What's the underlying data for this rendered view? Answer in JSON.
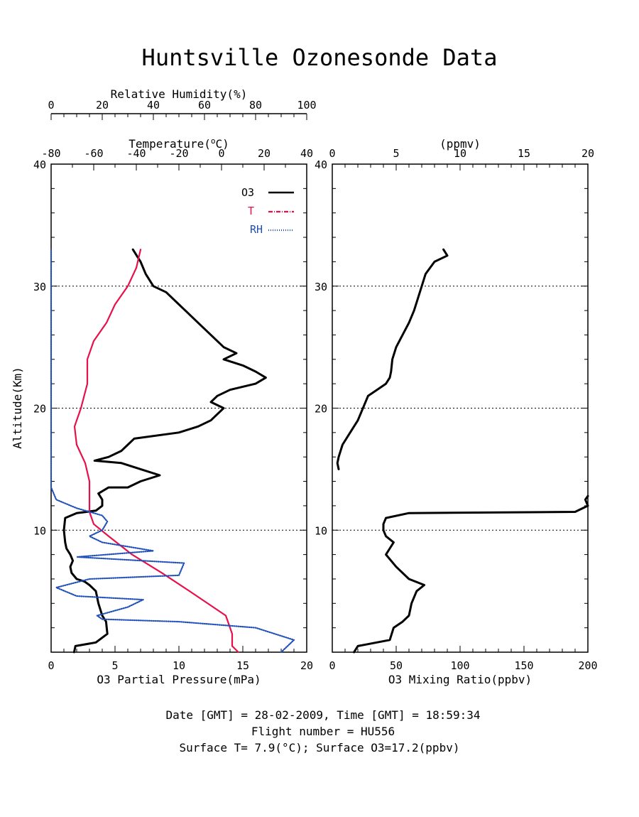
{
  "title": "Huntsville Ozonesonde Data",
  "footer": {
    "line1": "Date [GMT] = 28-02-2009,  Time [GMT] = 18:59:34",
    "line2": "Flight number = HU556",
    "line3": "Surface T= 7.9(°C); Surface O3=17.2(ppbv)"
  },
  "colors": {
    "o3": "#000000",
    "temperature": "#e8104a",
    "rh": "#1f4fb8"
  },
  "chart_data": [
    {
      "type": "line",
      "panel": "left",
      "y_axis": {
        "label": "Altitude(Km)",
        "range": [
          0,
          40
        ],
        "ticks": [
          10,
          20,
          30,
          40
        ],
        "grid_lines": [
          10,
          20,
          30
        ]
      },
      "x_axes": {
        "bottom": {
          "label": "O3 Partial Pressure(mPa)",
          "range": [
            0,
            20
          ],
          "ticks": [
            0,
            5,
            10,
            15,
            20
          ]
        },
        "temperature": {
          "label": "Temperature(°C)",
          "range": [
            -80,
            40
          ],
          "ticks": [
            -80,
            -60,
            -40,
            -20,
            0,
            20,
            40
          ]
        },
        "humidity": {
          "label": "Relative Humidity(%)",
          "range": [
            0,
            100
          ],
          "ticks": [
            0,
            20,
            40,
            60,
            80,
            100
          ]
        }
      },
      "legend": {
        "placement": "top-right",
        "entries": [
          "O3",
          "T",
          "RH"
        ]
      },
      "series": [
        {
          "name": "O3",
          "axis": "bottom",
          "color": "#000000",
          "points": [
            [
              1.8,
              0
            ],
            [
              1.9,
              0.5
            ],
            [
              3.5,
              0.8
            ],
            [
              4.4,
              1.5
            ],
            [
              4.3,
              2.5
            ],
            [
              4.0,
              3.0
            ],
            [
              3.7,
              4.0
            ],
            [
              3.5,
              5.0
            ],
            [
              3.0,
              5.5
            ],
            [
              2.6,
              5.8
            ],
            [
              2.0,
              6.0
            ],
            [
              1.6,
              6.5
            ],
            [
              1.5,
              7.0
            ],
            [
              1.7,
              7.5
            ],
            [
              1.5,
              8.0
            ],
            [
              1.2,
              8.5
            ],
            [
              1.1,
              9.0
            ],
            [
              1.0,
              10.0
            ],
            [
              1.1,
              11.0
            ],
            [
              2.0,
              11.4
            ],
            [
              3.5,
              11.6
            ],
            [
              4.0,
              12.0
            ],
            [
              4.0,
              12.5
            ],
            [
              3.7,
              13.0
            ],
            [
              4.5,
              13.5
            ],
            [
              6.0,
              13.5
            ],
            [
              7.0,
              14.0
            ],
            [
              8.5,
              14.5
            ],
            [
              7.0,
              15.0
            ],
            [
              5.5,
              15.5
            ],
            [
              3.4,
              15.7
            ],
            [
              4.5,
              16.0
            ],
            [
              5.5,
              16.5
            ],
            [
              6.0,
              17.0
            ],
            [
              6.5,
              17.5
            ],
            [
              10.0,
              18.0
            ],
            [
              11.5,
              18.5
            ],
            [
              12.5,
              19.0
            ],
            [
              13.0,
              19.5
            ],
            [
              13.5,
              20.0
            ],
            [
              12.5,
              20.5
            ],
            [
              13.0,
              21.0
            ],
            [
              14.0,
              21.5
            ],
            [
              16.0,
              22.0
            ],
            [
              16.8,
              22.5
            ],
            [
              16.0,
              23.0
            ],
            [
              15.0,
              23.5
            ],
            [
              13.5,
              24.0
            ],
            [
              14.5,
              24.5
            ],
            [
              13.5,
              25.0
            ],
            [
              12.5,
              26.0
            ],
            [
              11.5,
              27.0
            ],
            [
              10.5,
              28.0
            ],
            [
              9.5,
              29.0
            ],
            [
              9.0,
              29.5
            ],
            [
              8.0,
              30.0
            ],
            [
              7.4,
              31.0
            ],
            [
              7.0,
              32.0
            ],
            [
              6.4,
              33.0
            ]
          ]
        },
        {
          "name": "T",
          "axis": "temperature",
          "color": "#e8104a",
          "points": [
            [
              7.9,
              0
            ],
            [
              5,
              0.5
            ],
            [
              5,
              1.5
            ],
            [
              2,
              3.0
            ],
            [
              -15,
              5.0
            ],
            [
              -28,
              6.5
            ],
            [
              -42,
              8.0
            ],
            [
              -53,
              9.5
            ],
            [
              -60,
              10.5
            ],
            [
              -62,
              11.5
            ],
            [
              -62,
              12.5
            ],
            [
              -62,
              14
            ],
            [
              -64,
              15.5
            ],
            [
              -68,
              17
            ],
            [
              -69,
              18.5
            ],
            [
              -66,
              20
            ],
            [
              -63,
              22
            ],
            [
              -63,
              24
            ],
            [
              -60,
              25.5
            ],
            [
              -54,
              27
            ],
            [
              -50,
              28.5
            ],
            [
              -44,
              30
            ],
            [
              -40,
              31.5
            ],
            [
              -38,
              33
            ]
          ]
        },
        {
          "name": "RH",
          "axis": "humidity",
          "color": "#1f4fb8",
          "points": [
            [
              90,
              0
            ],
            [
              95,
              1.0
            ],
            [
              80,
              2.0
            ],
            [
              50,
              2.5
            ],
            [
              20,
              2.7
            ],
            [
              18,
              3.0
            ],
            [
              30,
              3.7
            ],
            [
              36,
              4.3
            ],
            [
              10,
              4.6
            ],
            [
              2,
              5.3
            ],
            [
              15,
              6.0
            ],
            [
              50,
              6.3
            ],
            [
              52,
              7.3
            ],
            [
              10,
              7.8
            ],
            [
              40,
              8.3
            ],
            [
              20,
              9.0
            ],
            [
              15,
              9.5
            ],
            [
              20,
              10.0
            ],
            [
              22,
              10.7
            ],
            [
              20,
              11.2
            ],
            [
              10,
              11.8
            ],
            [
              2,
              12.5
            ],
            [
              0,
              13.5
            ],
            [
              0,
              33.0
            ]
          ]
        }
      ]
    },
    {
      "type": "line",
      "panel": "right",
      "y_axis": {
        "label": "",
        "range": [
          0,
          40
        ],
        "ticks": [
          10,
          20,
          30,
          40
        ],
        "grid_lines": [
          10,
          20,
          30
        ]
      },
      "x_axes": {
        "bottom": {
          "label": "O3 Mixing Ratio(ppbv)",
          "range": [
            0,
            200
          ],
          "ticks": [
            0,
            50,
            100,
            150,
            200
          ]
        },
        "top": {
          "label": "(ppmv)",
          "range": [
            0,
            20
          ],
          "ticks": [
            0,
            5,
            10,
            15,
            20
          ]
        }
      },
      "series": [
        {
          "name": "O3",
          "axis": "bottom",
          "color": "#000000",
          "points": [
            [
              17,
              0
            ],
            [
              20,
              0.5
            ],
            [
              45,
              1.0
            ],
            [
              48,
              2.0
            ],
            [
              55,
              2.5
            ],
            [
              60,
              3.0
            ],
            [
              62,
              4.0
            ],
            [
              66,
              5.0
            ],
            [
              72,
              5.5
            ],
            [
              60,
              6.0
            ],
            [
              50,
              7.0
            ],
            [
              42,
              8.0
            ],
            [
              45,
              8.5
            ],
            [
              48,
              9.0
            ],
            [
              42,
              9.5
            ],
            [
              40,
              10.0
            ],
            [
              40,
              10.5
            ],
            [
              42,
              11.0
            ],
            [
              60,
              11.4
            ],
            [
              190,
              11.5
            ],
            [
              200,
              12.0
            ],
            [
              198,
              12.5
            ],
            [
              200,
              12.8
            ]
          ]
        },
        {
          "name": "O3",
          "axis": "bottom",
          "color": "#000000",
          "points": [
            [
              5,
              15.0
            ],
            [
              4,
              15.5
            ],
            [
              5,
              16.0
            ],
            [
              8,
              17.0
            ],
            [
              14,
              18.0
            ],
            [
              20,
              19.0
            ],
            [
              24,
              20.0
            ],
            [
              28,
              21.0
            ],
            [
              35,
              21.5
            ],
            [
              42,
              22.0
            ],
            [
              45,
              22.5
            ],
            [
              46,
              23.0
            ],
            [
              47,
              24.0
            ],
            [
              50,
              25.0
            ],
            [
              55,
              26.0
            ],
            [
              60,
              27.0
            ],
            [
              64,
              28.0
            ],
            [
              67,
              29.0
            ],
            [
              70,
              30.0
            ],
            [
              73,
              31.0
            ],
            [
              80,
              32.0
            ],
            [
              90,
              32.5
            ],
            [
              87,
              33.0
            ]
          ]
        }
      ]
    }
  ]
}
